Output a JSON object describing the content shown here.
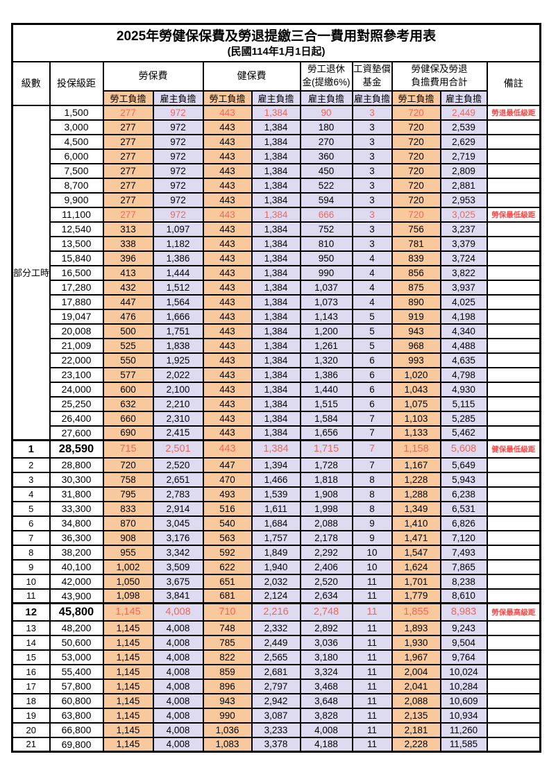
{
  "title": "2025年勞健保保費及勞退提繳三合一費用對照參考用表",
  "subtitle": "(民國114年1月1日起)",
  "header": {
    "level": "級數",
    "bracket": "投保級距",
    "labor_insurance": "勞保費",
    "health_insurance": "健保費",
    "pension_line1": "勞工退休",
    "pension_line2": "金(提繳6%)",
    "wage_fund_line1": "工資墊償",
    "wage_fund_line2": "基金",
    "total_line1": "勞健保及勞退",
    "total_line2": "負擔費用合計",
    "remark": "備註",
    "employee_burden": "勞工負擔",
    "employer_burden": "雇主負擔"
  },
  "colors": {
    "employee_bg": "#F8C99C",
    "employer_bg": "#DEDAF0",
    "highlight_value_red": "#F4655C",
    "remark_red": "#FF4545",
    "border": "#000000"
  },
  "part_time_label": "部分工時",
  "part_time_span": 23,
  "value_column_pattern": [
    "employee",
    "employer",
    "employee",
    "employer",
    "employer",
    "employer",
    "employee",
    "employer"
  ],
  "rows": [
    {
      "level": "",
      "bracket": "1,500",
      "values": [
        "277",
        "972",
        "443",
        "1,384",
        "90",
        "3",
        "720",
        "2,449"
      ],
      "remark": "勞退最低級距",
      "red": true,
      "bold": false
    },
    {
      "level": "",
      "bracket": "3,000",
      "values": [
        "277",
        "972",
        "443",
        "1,384",
        "180",
        "3",
        "720",
        "2,539"
      ],
      "remark": "",
      "red": false,
      "bold": false
    },
    {
      "level": "",
      "bracket": "4,500",
      "values": [
        "277",
        "972",
        "443",
        "1,384",
        "270",
        "3",
        "720",
        "2,629"
      ],
      "remark": "",
      "red": false,
      "bold": false
    },
    {
      "level": "",
      "bracket": "6,000",
      "values": [
        "277",
        "972",
        "443",
        "1,384",
        "360",
        "3",
        "720",
        "2,719"
      ],
      "remark": "",
      "red": false,
      "bold": false
    },
    {
      "level": "",
      "bracket": "7,500",
      "values": [
        "277",
        "972",
        "443",
        "1,384",
        "450",
        "3",
        "720",
        "2,809"
      ],
      "remark": "",
      "red": false,
      "bold": false
    },
    {
      "level": "",
      "bracket": "8,700",
      "values": [
        "277",
        "972",
        "443",
        "1,384",
        "522",
        "3",
        "720",
        "2,881"
      ],
      "remark": "",
      "red": false,
      "bold": false
    },
    {
      "level": "",
      "bracket": "9,900",
      "values": [
        "277",
        "972",
        "443",
        "1,384",
        "594",
        "3",
        "720",
        "2,953"
      ],
      "remark": "",
      "red": false,
      "bold": false
    },
    {
      "level": "",
      "bracket": "11,100",
      "values": [
        "277",
        "972",
        "443",
        "1,384",
        "666",
        "3",
        "720",
        "3,025"
      ],
      "remark": "勞保最低級距",
      "red": true,
      "bold": false
    },
    {
      "level": "",
      "bracket": "12,540",
      "values": [
        "313",
        "1,097",
        "443",
        "1,384",
        "752",
        "3",
        "756",
        "3,237"
      ],
      "remark": "",
      "red": false,
      "bold": false
    },
    {
      "level": "",
      "bracket": "13,500",
      "values": [
        "338",
        "1,182",
        "443",
        "1,384",
        "810",
        "3",
        "781",
        "3,379"
      ],
      "remark": "",
      "red": false,
      "bold": false
    },
    {
      "level": "",
      "bracket": "15,840",
      "values": [
        "396",
        "1,386",
        "443",
        "1,384",
        "950",
        "4",
        "839",
        "3,724"
      ],
      "remark": "",
      "red": false,
      "bold": false
    },
    {
      "level": "",
      "bracket": "16,500",
      "values": [
        "413",
        "1,444",
        "443",
        "1,384",
        "990",
        "4",
        "856",
        "3,822"
      ],
      "remark": "",
      "red": false,
      "bold": false
    },
    {
      "level": "",
      "bracket": "17,280",
      "values": [
        "432",
        "1,512",
        "443",
        "1,384",
        "1,037",
        "4",
        "875",
        "3,937"
      ],
      "remark": "",
      "red": false,
      "bold": false
    },
    {
      "level": "",
      "bracket": "17,880",
      "values": [
        "447",
        "1,564",
        "443",
        "1,384",
        "1,073",
        "4",
        "890",
        "4,025"
      ],
      "remark": "",
      "red": false,
      "bold": false
    },
    {
      "level": "",
      "bracket": "19,047",
      "values": [
        "476",
        "1,666",
        "443",
        "1,384",
        "1,143",
        "5",
        "919",
        "4,198"
      ],
      "remark": "",
      "red": false,
      "bold": false
    },
    {
      "level": "",
      "bracket": "20,008",
      "values": [
        "500",
        "1,751",
        "443",
        "1,384",
        "1,200",
        "5",
        "943",
        "4,340"
      ],
      "remark": "",
      "red": false,
      "bold": false
    },
    {
      "level": "",
      "bracket": "21,009",
      "values": [
        "525",
        "1,838",
        "443",
        "1,384",
        "1,261",
        "5",
        "968",
        "4,488"
      ],
      "remark": "",
      "red": false,
      "bold": false
    },
    {
      "level": "",
      "bracket": "22,000",
      "values": [
        "550",
        "1,925",
        "443",
        "1,384",
        "1,320",
        "6",
        "993",
        "4,635"
      ],
      "remark": "",
      "red": false,
      "bold": false
    },
    {
      "level": "",
      "bracket": "23,100",
      "values": [
        "577",
        "2,022",
        "443",
        "1,384",
        "1,386",
        "6",
        "1,020",
        "4,798"
      ],
      "remark": "",
      "red": false,
      "bold": false
    },
    {
      "level": "",
      "bracket": "24,000",
      "values": [
        "600",
        "2,100",
        "443",
        "1,384",
        "1,440",
        "6",
        "1,043",
        "4,930"
      ],
      "remark": "",
      "red": false,
      "bold": false
    },
    {
      "level": "",
      "bracket": "25,250",
      "values": [
        "632",
        "2,210",
        "443",
        "1,384",
        "1,515",
        "6",
        "1,075",
        "5,115"
      ],
      "remark": "",
      "red": false,
      "bold": false
    },
    {
      "level": "",
      "bracket": "26,400",
      "values": [
        "660",
        "2,310",
        "443",
        "1,384",
        "1,584",
        "7",
        "1,103",
        "5,285"
      ],
      "remark": "",
      "red": false,
      "bold": false
    },
    {
      "level": "",
      "bracket": "27,600",
      "values": [
        "690",
        "2,415",
        "443",
        "1,384",
        "1,656",
        "7",
        "1,133",
        "5,462"
      ],
      "remark": "",
      "red": false,
      "bold": false
    },
    {
      "level": "1",
      "bracket": "28,590",
      "values": [
        "715",
        "2,501",
        "443",
        "1,384",
        "1,715",
        "7",
        "1,158",
        "5,608"
      ],
      "remark": "健保最低級距",
      "red": true,
      "bold": true
    },
    {
      "level": "2",
      "bracket": "28,800",
      "values": [
        "720",
        "2,520",
        "447",
        "1,394",
        "1,728",
        "7",
        "1,167",
        "5,649"
      ],
      "remark": "",
      "red": false,
      "bold": false
    },
    {
      "level": "3",
      "bracket": "30,300",
      "values": [
        "758",
        "2,651",
        "470",
        "1,466",
        "1,818",
        "8",
        "1,228",
        "5,943"
      ],
      "remark": "",
      "red": false,
      "bold": false
    },
    {
      "level": "4",
      "bracket": "31,800",
      "values": [
        "795",
        "2,783",
        "493",
        "1,539",
        "1,908",
        "8",
        "1,288",
        "6,238"
      ],
      "remark": "",
      "red": false,
      "bold": false
    },
    {
      "level": "5",
      "bracket": "33,300",
      "values": [
        "833",
        "2,914",
        "516",
        "1,611",
        "1,998",
        "8",
        "1,349",
        "6,531"
      ],
      "remark": "",
      "red": false,
      "bold": false
    },
    {
      "level": "6",
      "bracket": "34,800",
      "values": [
        "870",
        "3,045",
        "540",
        "1,684",
        "2,088",
        "9",
        "1,410",
        "6,826"
      ],
      "remark": "",
      "red": false,
      "bold": false
    },
    {
      "level": "7",
      "bracket": "36,300",
      "values": [
        "908",
        "3,176",
        "563",
        "1,757",
        "2,178",
        "9",
        "1,471",
        "7,120"
      ],
      "remark": "",
      "red": false,
      "bold": false
    },
    {
      "level": "8",
      "bracket": "38,200",
      "values": [
        "955",
        "3,342",
        "592",
        "1,849",
        "2,292",
        "10",
        "1,547",
        "7,493"
      ],
      "remark": "",
      "red": false,
      "bold": false
    },
    {
      "level": "9",
      "bracket": "40,100",
      "values": [
        "1,002",
        "3,509",
        "622",
        "1,940",
        "2,406",
        "10",
        "1,624",
        "7,865"
      ],
      "remark": "",
      "red": false,
      "bold": false
    },
    {
      "level": "10",
      "bracket": "42,000",
      "values": [
        "1,050",
        "3,675",
        "651",
        "2,032",
        "2,520",
        "11",
        "1,701",
        "8,238"
      ],
      "remark": "",
      "red": false,
      "bold": false
    },
    {
      "level": "11",
      "bracket": "43,900",
      "values": [
        "1,098",
        "3,841",
        "681",
        "2,124",
        "2,634",
        "11",
        "1,779",
        "8,610"
      ],
      "remark": "",
      "red": false,
      "bold": false
    },
    {
      "level": "12",
      "bracket": "45,800",
      "values": [
        "1,145",
        "4,008",
        "710",
        "2,216",
        "2,748",
        "11",
        "1,855",
        "8,983"
      ],
      "remark": "勞保最高級距",
      "red": true,
      "bold": true
    },
    {
      "level": "13",
      "bracket": "48,200",
      "values": [
        "1,145",
        "4,008",
        "748",
        "2,332",
        "2,892",
        "11",
        "1,893",
        "9,243"
      ],
      "remark": "",
      "red": false,
      "bold": false
    },
    {
      "level": "14",
      "bracket": "50,600",
      "values": [
        "1,145",
        "4,008",
        "785",
        "2,449",
        "3,036",
        "11",
        "1,930",
        "9,504"
      ],
      "remark": "",
      "red": false,
      "bold": false
    },
    {
      "level": "15",
      "bracket": "53,000",
      "values": [
        "1,145",
        "4,008",
        "822",
        "2,565",
        "3,180",
        "11",
        "1,967",
        "9,764"
      ],
      "remark": "",
      "red": false,
      "bold": false
    },
    {
      "level": "16",
      "bracket": "55,400",
      "values": [
        "1,145",
        "4,008",
        "859",
        "2,681",
        "3,324",
        "11",
        "2,004",
        "10,024"
      ],
      "remark": "",
      "red": false,
      "bold": false
    },
    {
      "level": "17",
      "bracket": "57,800",
      "values": [
        "1,145",
        "4,008",
        "896",
        "2,797",
        "3,468",
        "11",
        "2,041",
        "10,284"
      ],
      "remark": "",
      "red": false,
      "bold": false
    },
    {
      "level": "18",
      "bracket": "60,800",
      "values": [
        "1,145",
        "4,008",
        "943",
        "2,942",
        "3,648",
        "11",
        "2,088",
        "10,609"
      ],
      "remark": "",
      "red": false,
      "bold": false
    },
    {
      "level": "19",
      "bracket": "63,800",
      "values": [
        "1,145",
        "4,008",
        "990",
        "3,087",
        "3,828",
        "11",
        "2,135",
        "10,934"
      ],
      "remark": "",
      "red": false,
      "bold": false
    },
    {
      "level": "20",
      "bracket": "66,800",
      "values": [
        "1,145",
        "4,008",
        "1,036",
        "3,233",
        "4,008",
        "11",
        "2,181",
        "11,260"
      ],
      "remark": "",
      "red": false,
      "bold": false
    },
    {
      "level": "21",
      "bracket": "69,800",
      "values": [
        "1,145",
        "4,008",
        "1,083",
        "3,378",
        "4,188",
        "11",
        "2,228",
        "11,585"
      ],
      "remark": "",
      "red": false,
      "bold": false
    }
  ]
}
